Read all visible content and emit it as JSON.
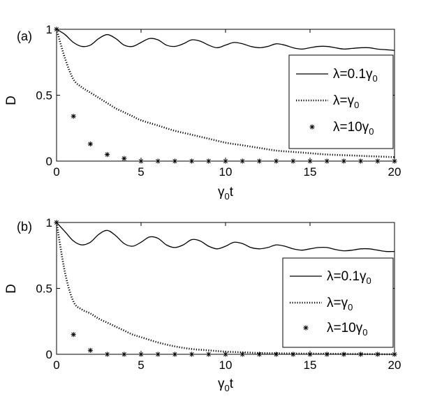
{
  "chart_data": [
    {
      "type": "line",
      "panel_label": "(a)",
      "ylabel": "D",
      "xlabel": {
        "main": "γ",
        "sub": "0",
        "tail": "t"
      },
      "xlim": [
        0,
        20
      ],
      "ylim": [
        0,
        1
      ],
      "xticks": [
        "0",
        "5",
        "10",
        "15",
        "20"
      ],
      "yticks": [
        "0",
        "0.5",
        "1"
      ],
      "legend_position": "right",
      "series": [
        {
          "name": "λ=0.1γ0",
          "style": "solid",
          "x": [
            0,
            0.5,
            1,
            1.5,
            2,
            2.5,
            3,
            3.5,
            4,
            4.5,
            5,
            5.5,
            6,
            6.5,
            7,
            7.5,
            8,
            8.5,
            9,
            9.5,
            10,
            10.5,
            11,
            11.5,
            12,
            12.5,
            13,
            13.5,
            14,
            14.5,
            15,
            15.5,
            16,
            16.5,
            17,
            17.5,
            18,
            18.5,
            19,
            19.5,
            20
          ],
          "y": [
            1.0,
            0.96,
            0.9,
            0.87,
            0.88,
            0.93,
            0.96,
            0.93,
            0.88,
            0.87,
            0.9,
            0.93,
            0.92,
            0.88,
            0.87,
            0.89,
            0.92,
            0.91,
            0.88,
            0.86,
            0.88,
            0.9,
            0.89,
            0.87,
            0.86,
            0.87,
            0.89,
            0.88,
            0.86,
            0.85,
            0.86,
            0.87,
            0.87,
            0.86,
            0.85,
            0.855,
            0.86,
            0.86,
            0.85,
            0.845,
            0.84
          ]
        },
        {
          "name": "λ=γ0",
          "style": "dotted",
          "x": [
            0,
            0.5,
            1,
            1.5,
            2,
            2.5,
            3,
            3.5,
            4,
            4.5,
            5,
            6,
            7,
            8,
            9,
            10,
            11,
            12,
            13,
            14,
            15,
            16,
            17,
            18,
            19,
            20
          ],
          "y": [
            1.0,
            0.78,
            0.62,
            0.56,
            0.52,
            0.48,
            0.44,
            0.4,
            0.37,
            0.34,
            0.31,
            0.27,
            0.23,
            0.2,
            0.17,
            0.14,
            0.12,
            0.1,
            0.08,
            0.07,
            0.06,
            0.05,
            0.045,
            0.04,
            0.035,
            0.03
          ]
        },
        {
          "name": "λ=10γ0",
          "style": "marker",
          "x": [
            0,
            1,
            2,
            3,
            4,
            5,
            6,
            7,
            8,
            9,
            10,
            11,
            12,
            13,
            14,
            15,
            16,
            17,
            18,
            19,
            20
          ],
          "y": [
            1.0,
            0.34,
            0.13,
            0.05,
            0.02,
            0,
            0,
            0,
            0,
            0,
            0,
            0,
            0,
            0,
            0,
            0,
            0,
            0,
            0,
            0,
            0
          ]
        }
      ]
    },
    {
      "type": "line",
      "panel_label": "(b)",
      "ylabel": "D",
      "xlabel": {
        "main": "γ",
        "sub": "0",
        "tail": "t"
      },
      "xlim": [
        0,
        20
      ],
      "ylim": [
        0,
        1
      ],
      "xticks": [
        "0",
        "5",
        "10",
        "15",
        "20"
      ],
      "yticks": [
        "0",
        "0.5",
        "1"
      ],
      "legend_position": "right",
      "series": [
        {
          "name": "λ=0.1γ0",
          "style": "solid",
          "x": [
            0,
            0.5,
            1,
            1.5,
            2,
            2.5,
            3,
            3.5,
            4,
            4.5,
            5,
            5.5,
            6,
            6.5,
            7,
            7.5,
            8,
            8.5,
            9,
            9.5,
            10,
            10.5,
            11,
            11.5,
            12,
            12.5,
            13,
            13.5,
            14,
            14.5,
            15,
            15.5,
            16,
            16.5,
            17,
            17.5,
            18,
            18.5,
            19,
            19.5,
            20
          ],
          "y": [
            1.0,
            0.93,
            0.86,
            0.83,
            0.85,
            0.91,
            0.94,
            0.9,
            0.84,
            0.82,
            0.85,
            0.89,
            0.88,
            0.83,
            0.81,
            0.83,
            0.87,
            0.86,
            0.82,
            0.8,
            0.82,
            0.85,
            0.84,
            0.81,
            0.8,
            0.81,
            0.83,
            0.82,
            0.8,
            0.79,
            0.8,
            0.81,
            0.81,
            0.795,
            0.785,
            0.79,
            0.8,
            0.8,
            0.79,
            0.78,
            0.78
          ]
        },
        {
          "name": "λ=γ0",
          "style": "dotted",
          "x": [
            0,
            0.5,
            1,
            1.5,
            2,
            2.5,
            3,
            3.5,
            4,
            4.5,
            5,
            6,
            7,
            8,
            9,
            10,
            11,
            12,
            13,
            14,
            15,
            16,
            17,
            18,
            19,
            20
          ],
          "y": [
            1.0,
            0.62,
            0.4,
            0.34,
            0.31,
            0.27,
            0.24,
            0.21,
            0.18,
            0.15,
            0.13,
            0.09,
            0.06,
            0.04,
            0.03,
            0.02,
            0.015,
            0.01,
            0.008,
            0.006,
            0.005,
            0.004,
            0.003,
            0.002,
            0.001,
            0.0
          ]
        },
        {
          "name": "λ=10γ0",
          "style": "marker",
          "x": [
            0,
            1,
            2,
            3,
            4,
            5,
            6,
            7,
            8,
            9,
            10,
            11,
            12,
            13,
            14,
            15,
            16,
            17,
            18,
            19,
            20
          ],
          "y": [
            1.0,
            0.15,
            0.03,
            0,
            0,
            0,
            0,
            0,
            0,
            0,
            0,
            0,
            0,
            0,
            0,
            0,
            0,
            0,
            0,
            0,
            0
          ]
        }
      ]
    }
  ],
  "legend_labels": {
    "a": [
      {
        "main": "λ=0.1γ",
        "sub": "0"
      },
      {
        "main": "λ=γ",
        "sub": "0"
      },
      {
        "main": "λ=10γ",
        "sub": "0"
      }
    ],
    "b": [
      {
        "main": "λ=0.1γ",
        "sub": "0"
      },
      {
        "main": "λ=γ",
        "sub": "0"
      },
      {
        "main": "λ=10γ",
        "sub": "0"
      }
    ]
  }
}
